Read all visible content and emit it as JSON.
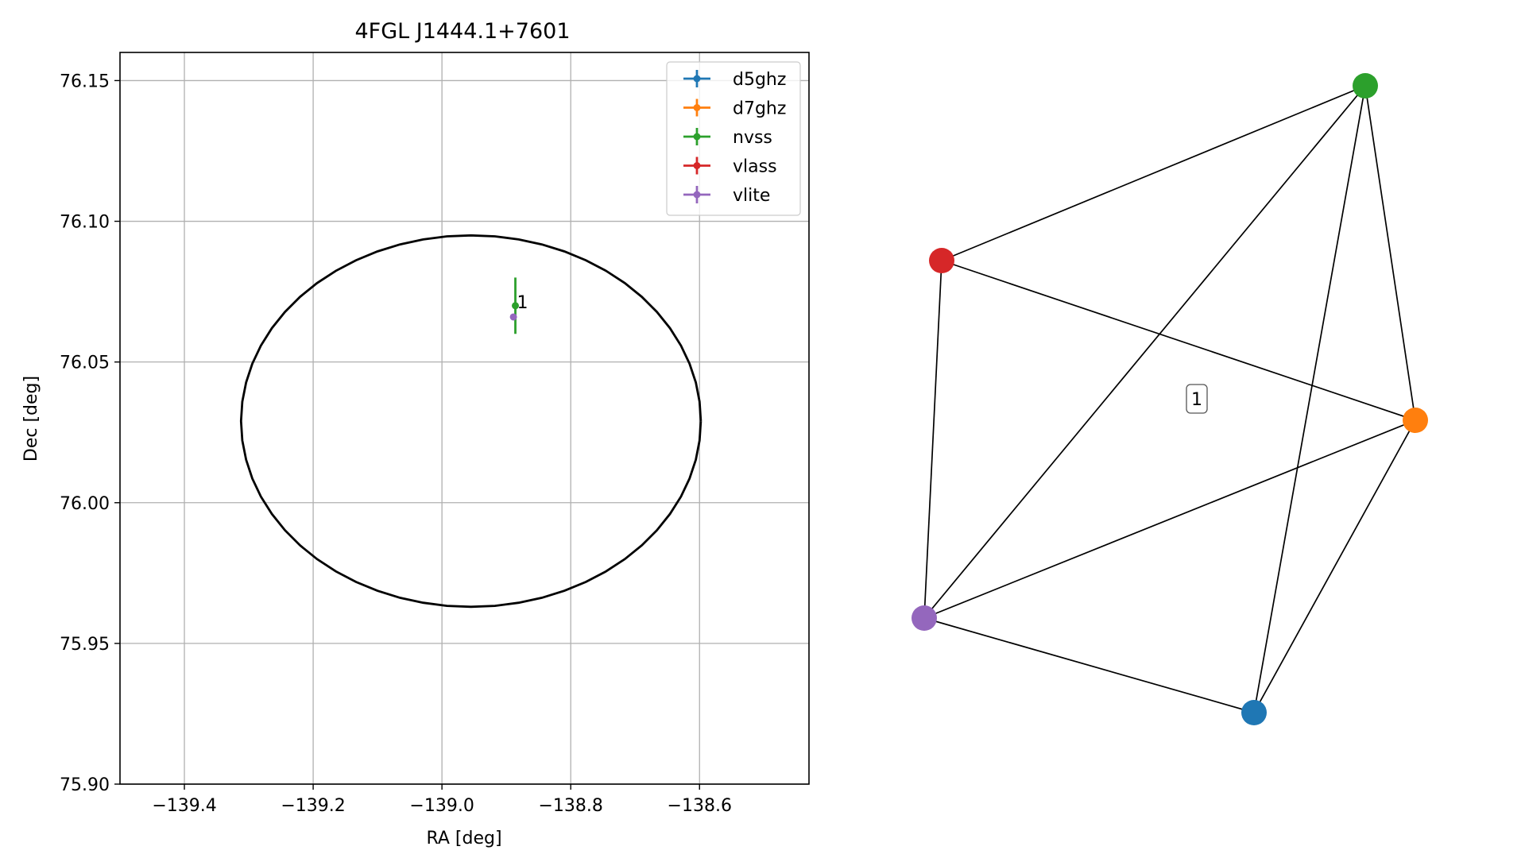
{
  "chart_data": [
    {
      "type": "scatter",
      "title": "4FGL J1444.1+7601",
      "xlabel": "RA [deg]",
      "ylabel": "Dec [deg]",
      "xlim": [
        -139.5,
        -138.43
      ],
      "ylim": [
        75.9,
        76.16
      ],
      "xticks": [
        -139.4,
        -139.2,
        -139.0,
        -138.8,
        -138.6
      ],
      "xtick_labels": [
        "−139.4",
        "−139.2",
        "−139.0",
        "−138.8",
        "−138.6"
      ],
      "yticks": [
        75.9,
        75.95,
        76.0,
        76.05,
        76.1,
        76.15
      ],
      "ytick_labels": [
        "75.90",
        "75.95",
        "76.00",
        "76.05",
        "76.10",
        "76.15"
      ],
      "grid": true,
      "legend_position": "top-right",
      "ellipse": {
        "ra_center": -138.955,
        "dec_center": 76.029,
        "ra_halfwidth": 0.357,
        "dec_halfwidth": 0.066,
        "color": "#000000"
      },
      "series": [
        {
          "name": "d5ghz",
          "color": "#1f77b4",
          "points": []
        },
        {
          "name": "d7ghz",
          "color": "#ff7f0e",
          "points": []
        },
        {
          "name": "nvss",
          "color": "#2ca02c",
          "points": [
            {
              "x": -138.886,
              "y": 76.07,
              "yerr": 0.01
            }
          ]
        },
        {
          "name": "vlass",
          "color": "#d62728",
          "points": []
        },
        {
          "name": "vlite",
          "color": "#9467bd",
          "points": [
            {
              "x": -138.889,
              "y": 76.066,
              "yerr": 0
            }
          ]
        }
      ],
      "annotations": [
        {
          "text": "1",
          "x": -138.886,
          "y": 76.07
        }
      ]
    },
    {
      "type": "network",
      "nodes": [
        {
          "id": "nvss",
          "color": "#2ca02c"
        },
        {
          "id": "vlass",
          "color": "#d62728"
        },
        {
          "id": "d7ghz",
          "color": "#ff7f0e"
        },
        {
          "id": "vlite",
          "color": "#9467bd"
        },
        {
          "id": "d5ghz",
          "color": "#1f77b4"
        }
      ],
      "edges": [
        [
          "vlass",
          "nvss"
        ],
        [
          "vlass",
          "d7ghz"
        ],
        [
          "vlass",
          "vlite"
        ],
        [
          "nvss",
          "vlite"
        ],
        [
          "nvss",
          "d5ghz"
        ],
        [
          "nvss",
          "d7ghz"
        ],
        [
          "d7ghz",
          "vlite"
        ],
        [
          "d7ghz",
          "d5ghz"
        ],
        [
          "vlite",
          "d5ghz"
        ]
      ],
      "label": "1"
    }
  ]
}
